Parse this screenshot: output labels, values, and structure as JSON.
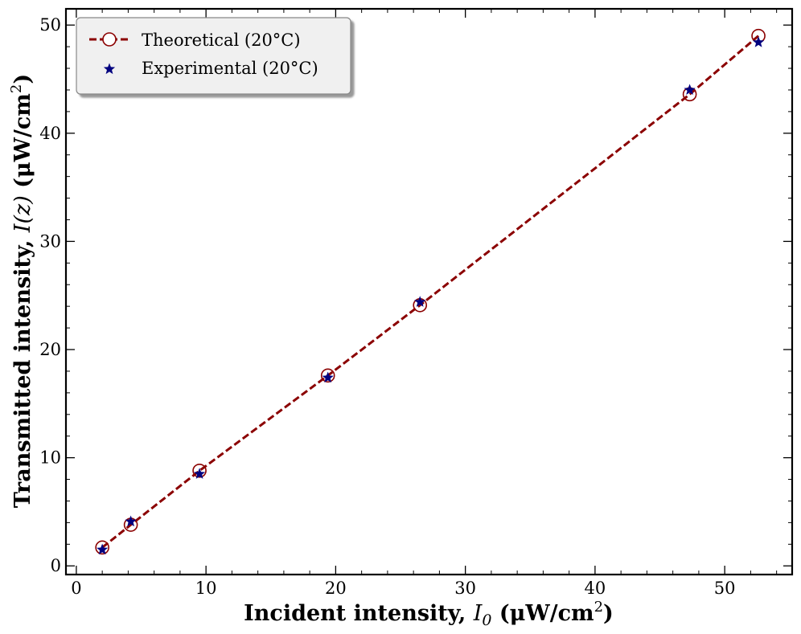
{
  "chart_data": {
    "type": "line",
    "title": "",
    "xlabel": {
      "prefix": "Incident intensity, ",
      "math": "I",
      "sub": "0",
      "unit_open": " (μW/cm",
      "sup": "2",
      "unit_close": ")"
    },
    "ylabel": {
      "prefix": "Transmitted intensity, ",
      "math": "I(z)",
      "unit_open": " (μW/cm",
      "sup": "2",
      "unit_close": ")"
    },
    "xlim": [
      -0.8,
      55.2
    ],
    "ylim": [
      -0.8,
      51.5
    ],
    "xticks": [
      0,
      10,
      20,
      30,
      40,
      50
    ],
    "yticks": [
      0,
      10,
      20,
      30,
      40,
      50
    ],
    "xtick_labels": [
      "0",
      "10",
      "20",
      "30",
      "40",
      "50"
    ],
    "ytick_labels": [
      "0",
      "10",
      "20",
      "30",
      "40",
      "50"
    ],
    "legend_position": "top-left",
    "series": [
      {
        "name": "Theoretical (20°C)",
        "style": "dashed-line-open-circle",
        "color": "#8b0000",
        "x": [
          2.0,
          4.2,
          9.5,
          19.4,
          26.5,
          47.3,
          52.6
        ],
        "y": [
          1.7,
          3.8,
          8.8,
          17.6,
          24.1,
          43.6,
          49.0
        ]
      },
      {
        "name": "Experimental (20°C)",
        "style": "star-marker",
        "color": "#00007f",
        "x": [
          2.0,
          4.2,
          9.5,
          19.4,
          26.5,
          47.3,
          52.6
        ],
        "y": [
          1.5,
          4.1,
          8.5,
          17.4,
          24.4,
          44.0,
          48.4
        ]
      }
    ]
  }
}
